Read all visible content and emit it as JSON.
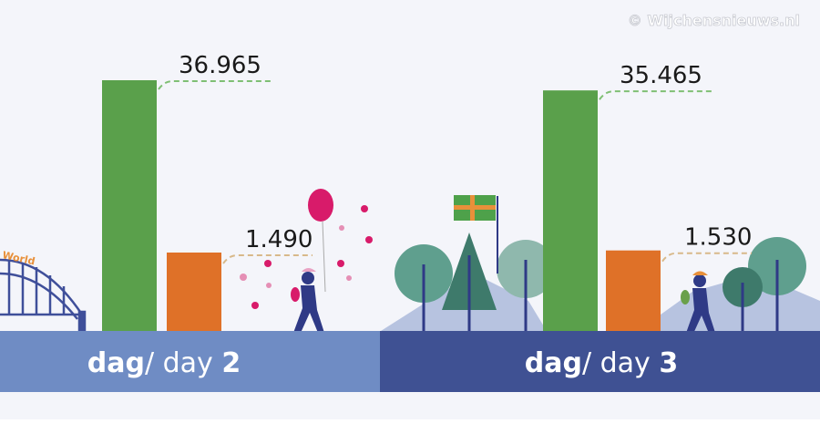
{
  "watermark": "© Wijchensnieuws.nl",
  "colors": {
    "green": "#5aa04b",
    "orange": "#df7128",
    "band_day2": "#6f8cc4",
    "band_day3": "#3f5193",
    "background": "#f4f5fa"
  },
  "chart_data": {
    "type": "bar",
    "categories": [
      "dag/ day 2",
      "dag/ day 3"
    ],
    "series": [
      {
        "values": [
          36965,
          35465
        ],
        "labels": [
          "36.965",
          "35.465"
        ],
        "color": "#5aa04b"
      },
      {
        "values": [
          1490,
          1530
        ],
        "labels": [
          "1.490",
          "1.530"
        ],
        "color": "#df7128"
      }
    ],
    "day_labels": [
      {
        "bold": "dag",
        "thin": "/ day ",
        "num": "2"
      },
      {
        "bold": "dag",
        "thin": "/ day ",
        "num": "3"
      }
    ],
    "illustration_text": "World"
  }
}
